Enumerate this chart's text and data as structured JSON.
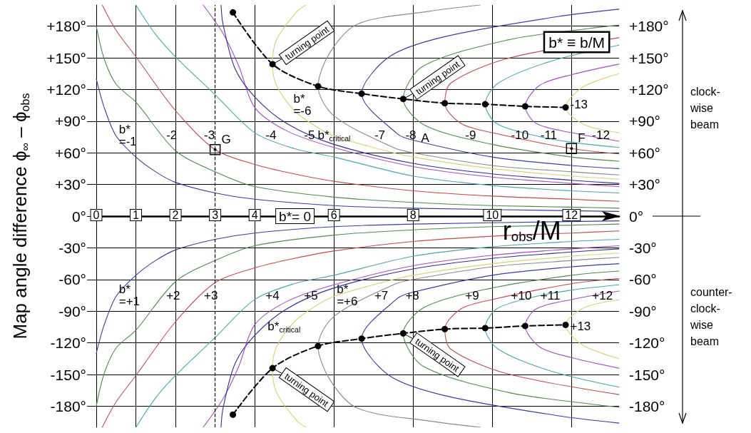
{
  "chart_data": {
    "type": "line",
    "xlabel": "r$_{obs}$/M",
    "ylabel": "Map angle difference ϕ$_{∞}$ – ϕ$_{obs}$",
    "xlim": [
      0,
      13.2
    ],
    "xticks": [
      0,
      1,
      2,
      3,
      4,
      6,
      8,
      10,
      12
    ],
    "ylim": [
      -200,
      200
    ],
    "yticks": [
      {
        "value": 180,
        "label": "+180°"
      },
      {
        "value": 150,
        "label": "+150°"
      },
      {
        "value": 120,
        "label": "+120°"
      },
      {
        "value": 90,
        "label": "+90°"
      },
      {
        "value": 60,
        "label": "+60°"
      },
      {
        "value": 30,
        "label": "+30°"
      },
      {
        "value": 0,
        "label": "0°"
      },
      {
        "value": -30,
        "label": "-30°"
      },
      {
        "value": -60,
        "label": "-60°"
      },
      {
        "value": -90,
        "label": "-90°"
      },
      {
        "value": -120,
        "label": "-120°"
      },
      {
        "value": -150,
        "label": "-150°"
      },
      {
        "value": -180,
        "label": "-180°"
      }
    ],
    "y2lim": [
      -200,
      200
    ],
    "y2ticks": [
      {
        "value": 180,
        "label": "+180°"
      },
      {
        "value": 150,
        "label": "+150°"
      },
      {
        "value": 120,
        "label": "+120°"
      },
      {
        "value": 90,
        "label": "+90°"
      },
      {
        "value": 60,
        "label": "+60°"
      },
      {
        "value": 30,
        "label": "+30°"
      },
      {
        "value": 0,
        "label": "0°"
      },
      {
        "value": -30,
        "label": "-30°"
      },
      {
        "value": -60,
        "label": "-60°"
      },
      {
        "value": -90,
        "label": "-90°"
      },
      {
        "value": -120,
        "label": "-120°"
      },
      {
        "value": -150,
        "label": "-150°"
      },
      {
        "value": -180,
        "label": "-180°"
      }
    ],
    "grid": true,
    "marker": "none",
    "line_style": "solid",
    "series": [
      {
        "name": "b*\n=-1",
        "color": "#3b3ba8",
        "x": [
          0,
          0.2,
          0.5,
          1,
          1.5,
          2,
          3,
          4,
          6,
          8,
          13.2
        ],
        "values": [
          130,
          103,
          76,
          56,
          42,
          32,
          22,
          16,
          10,
          7.5,
          4.5
        ]
      },
      {
        "name": "-2",
        "color": "#4e8c4e",
        "x": [
          0,
          0.2,
          0.5,
          1,
          2,
          3,
          4,
          6,
          8,
          10,
          12,
          13.2
        ],
        "values": [
          180,
          149,
          125,
          108,
          62,
          42,
          28,
          18,
          13,
          10,
          8.5,
          7.5
        ]
      },
      {
        "name": "-3",
        "color": "#c84a4a",
        "x": [
          0.15,
          0.5,
          1,
          2,
          3,
          4,
          5,
          6,
          8,
          10,
          12,
          13.2
        ],
        "values": [
          200,
          176,
          151,
          100,
          63,
          49,
          40,
          33,
          24,
          19,
          16,
          14
        ]
      },
      {
        "name": "-4",
        "color": "#4aa8a8",
        "x": [
          1,
          1.5,
          2,
          3,
          4,
          5,
          6,
          8,
          10,
          12,
          13.2
        ],
        "values": [
          200,
          172,
          151,
          115,
          79,
          64,
          56,
          38,
          29,
          24,
          22
        ]
      },
      {
        "name": "-5",
        "color": "#a64ac8",
        "x": [
          2.7,
          3.2,
          3.6,
          4,
          4.8,
          6,
          8,
          10,
          12,
          13.2
        ],
        "values": [
          200,
          173,
          142,
          103,
          81,
          65,
          47,
          37,
          31,
          28
        ]
      },
      {
        "name": "b*$_{critical}$",
        "color": "#2e2e9e",
        "x": [
          3.15,
          3.2,
          3.5,
          4,
          4.8,
          6,
          8,
          10,
          12,
          13.2
        ],
        "values": [
          200,
          182,
          140,
          113,
          88,
          68,
          50,
          40,
          34,
          31
        ]
      },
      {
        "name": "b*\n=-6",
        "color": "#d4d47a",
        "x": [
          5.3,
          5.07,
          4.55,
          4.45,
          4.55,
          5,
          5.5,
          6,
          7,
          8,
          10,
          12,
          13.2
        ],
        "values": [
          200,
          194,
          167,
          144,
          124,
          100,
          86,
          76,
          65,
          56,
          45,
          38,
          35
        ]
      },
      {
        "name": "-7",
        "color": "#8a8a8a",
        "x": [
          9.7,
          8.4,
          6.6,
          5.9,
          5.6,
          6,
          7.5,
          8,
          10,
          12,
          13.2
        ],
        "values": [
          200,
          194,
          182,
          155,
          123,
          95,
          65,
          60,
          48,
          42,
          39
        ]
      },
      {
        "name": "-8",
        "color": "#3b3ba8",
        "x": [
          13.2,
          11.65,
          8.8,
          7.4,
          6.7,
          7.6,
          8,
          10,
          12,
          13.2
        ],
        "values": [
          196,
          189,
          170,
          151,
          116,
          78,
          72,
          56,
          48,
          45
        ]
      },
      {
        "name": "-9",
        "color": "#4e8c4e",
        "x": [
          13.2,
          12.5,
          10.4,
          8.25,
          7.75,
          8.3,
          10,
          12,
          13.2
        ],
        "values": [
          181,
          178,
          167,
          142,
          111,
          86,
          68,
          56,
          52
        ]
      },
      {
        "name": "-10",
        "color": "#c84a4a",
        "x": [
          13.2,
          10.35,
          8.95,
          8.8,
          9.2,
          10,
          12,
          13.2
        ],
        "values": [
          169,
          149,
          126,
          107,
          88,
          79,
          64,
          59
        ]
      },
      {
        "name": "-11",
        "color": "#4aa8a8",
        "x": [
          13.2,
          11.5,
          10.15,
          9.82,
          10.1,
          11,
          12,
          13.2
        ],
        "values": [
          162,
          147,
          126,
          106,
          88,
          77,
          70,
          65
        ]
      },
      {
        "name": "-12",
        "color": "#a64ac8",
        "x": [
          13.2,
          12,
          11.2,
          10.83,
          11.1,
          12,
          13.2
        ],
        "values": [
          144,
          134,
          124,
          104,
          88,
          79,
          71
        ]
      },
      {
        "name": "-13",
        "color": "#d4d47a",
        "x": [
          13.2,
          12.27,
          11.85,
          12.3,
          13.2
        ],
        "values": [
          135,
          122,
          103,
          87,
          79
        ]
      },
      {
        "name": "b*\n=+1",
        "color": "#3b3ba8",
        "x": [
          0,
          0.2,
          0.5,
          1,
          1.5,
          2,
          3,
          4,
          6,
          8,
          13.2
        ],
        "values": [
          -130,
          -103,
          -76,
          -56,
          -42,
          -32,
          -22,
          -16,
          -10,
          -7.5,
          -4.5
        ]
      },
      {
        "name": "+2",
        "color": "#4e8c4e",
        "x": [
          0,
          0.2,
          0.5,
          1,
          2,
          3,
          4,
          6,
          8,
          10,
          12,
          13.2
        ],
        "values": [
          -180,
          -149,
          -125,
          -108,
          -62,
          -42,
          -28,
          -18,
          -13,
          -10,
          -8.5,
          -7.5
        ]
      },
      {
        "name": "+3",
        "color": "#c84a4a",
        "x": [
          0.15,
          0.5,
          1,
          2,
          3,
          4,
          5,
          6,
          8,
          10,
          12,
          13.2
        ],
        "values": [
          -200,
          -176,
          -151,
          -100,
          -63,
          -49,
          -40,
          -33,
          -24,
          -19,
          -16,
          -14
        ]
      },
      {
        "name": "+4",
        "color": "#4aa8a8",
        "x": [
          1,
          1.5,
          2,
          3,
          4,
          5,
          6,
          8,
          10,
          12,
          13.2
        ],
        "values": [
          -200,
          -172,
          -151,
          -115,
          -79,
          -64,
          -56,
          -38,
          -29,
          -24,
          -22
        ]
      },
      {
        "name": "+5",
        "color": "#a64ac8",
        "x": [
          2.7,
          3.2,
          3.6,
          4,
          4.8,
          6,
          8,
          10,
          12,
          13.2
        ],
        "values": [
          -200,
          -173,
          -142,
          -103,
          -81,
          -65,
          -47,
          -37,
          -31,
          -28
        ]
      },
      {
        "name": "b*$_{critical}$",
        "color": "#2e2e9e",
        "x": [
          3.15,
          3.2,
          3.5,
          4,
          4.8,
          6,
          8,
          10,
          12,
          13.2
        ],
        "values": [
          -200,
          -182,
          -140,
          -113,
          -88,
          -68,
          -50,
          -40,
          -34,
          -31
        ]
      },
      {
        "name": "b*\n=+6",
        "color": "#d4d47a",
        "x": [
          5.3,
          5.07,
          4.55,
          4.45,
          4.55,
          5,
          5.5,
          6,
          7,
          8,
          10,
          12,
          13.2
        ],
        "values": [
          -200,
          -194,
          -167,
          -144,
          -124,
          -100,
          -86,
          -76,
          -65,
          -56,
          -45,
          -38,
          -35
        ]
      },
      {
        "name": "+7",
        "color": "#8a8a8a",
        "x": [
          9.7,
          8.4,
          6.6,
          5.9,
          5.6,
          6,
          7.5,
          8,
          10,
          12,
          13.2
        ],
        "values": [
          -200,
          -194,
          -182,
          -155,
          -123,
          -95,
          -65,
          -60,
          -48,
          -42,
          -39
        ]
      },
      {
        "name": "+8",
        "color": "#3b3ba8",
        "x": [
          13.2,
          11.65,
          8.8,
          7.4,
          6.7,
          7.6,
          8,
          10,
          12,
          13.2
        ],
        "values": [
          -196,
          -189,
          -170,
          -151,
          -116,
          -78,
          -72,
          -56,
          -48,
          -45
        ]
      },
      {
        "name": "+9",
        "color": "#4e8c4e",
        "x": [
          13.2,
          12.5,
          10.4,
          8.25,
          7.75,
          8.3,
          10,
          12,
          13.2
        ],
        "values": [
          -181,
          -178,
          -167,
          -142,
          -111,
          -86,
          -68,
          -56,
          -52
        ]
      },
      {
        "name": "+10",
        "color": "#c84a4a",
        "x": [
          13.2,
          10.35,
          8.95,
          8.8,
          9.2,
          10,
          12,
          13.2
        ],
        "values": [
          -169,
          -149,
          -126,
          -107,
          -88,
          -79,
          -64,
          -59
        ]
      },
      {
        "name": "+11",
        "color": "#4aa8a8",
        "x": [
          13.2,
          11.5,
          10.15,
          9.82,
          10.1,
          11,
          12,
          13.2
        ],
        "values": [
          -162,
          -147,
          -126,
          -106,
          -88,
          -77,
          -70,
          -65
        ]
      },
      {
        "name": "+12",
        "color": "#a64ac8",
        "x": [
          13.2,
          12,
          11.2,
          10.83,
          11.1,
          12,
          13.2
        ],
        "values": [
          -144,
          -134,
          -124,
          -104,
          -88,
          -79,
          -71
        ]
      },
      {
        "name": "+13",
        "color": "#d4d47a",
        "x": [
          13.2,
          12.27,
          11.85,
          12.3,
          13.2
        ],
        "values": [
          -135,
          -122,
          -103,
          -87,
          -79
        ]
      },
      {
        "color": "#000000",
        "marker": "circle",
        "line_style": "dashed",
        "x": [
          3.45,
          4.45,
          5.6,
          6.7,
          7.75,
          8.8,
          9.82,
          10.83,
          11.85
        ],
        "values": [
          193,
          144,
          123,
          116,
          111,
          107,
          106,
          104,
          103
        ]
      },
      {
        "color": "#000000",
        "marker": "circle",
        "line_style": "dashed",
        "x": [
          3.45,
          4.45,
          5.6,
          6.7,
          7.75,
          8.8,
          9.82,
          10.83,
          11.85
        ],
        "values": [
          -188,
          -144,
          -123,
          -116,
          -111,
          -107,
          -106,
          -104,
          -103
        ]
      }
    ],
    "ref_lines": [
      {
        "axis": "x",
        "value": 3,
        "line_style": "dashed",
        "color": "#000000"
      }
    ],
    "annotations": [
      {
        "text": "G",
        "x": 3,
        "y": 63
      },
      {
        "text": "F",
        "x": 12,
        "y": 64
      },
      {
        "text": "turning point",
        "x": 4.45,
        "y": 144
      },
      {
        "text": "turning point",
        "x": 7.75,
        "y": 111
      },
      {
        "text": "turning point",
        "x": 7.75,
        "y": -111
      },
      {
        "text": "turning point",
        "x": 4.45,
        "y": -144
      },
      "b* ≡ b/M",
      "clock-\nwise\nbeam",
      "counter-\nclock-\nwise\nbeam",
      "b*= 0",
      "A"
    ]
  }
}
